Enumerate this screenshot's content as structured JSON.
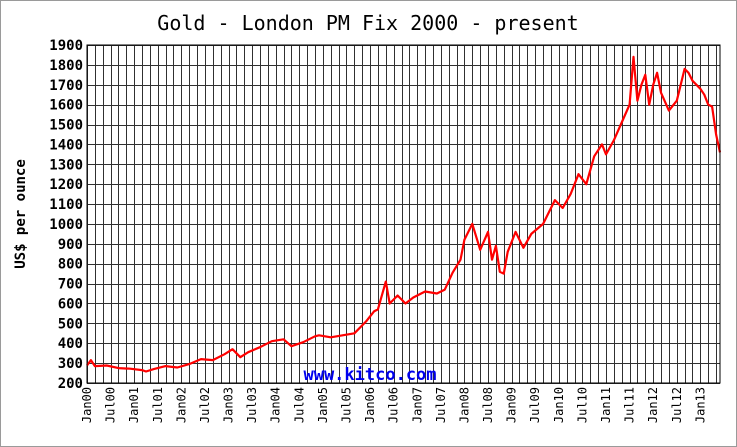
{
  "chart_data": {
    "type": "line",
    "title": "Gold - London PM Fix 2000 - present",
    "ylabel": "US$ per ounce",
    "xlabel": "",
    "watermark": "www.kitco.com",
    "x_range": [
      "2000-01",
      "2013-06"
    ],
    "ylim": [
      200,
      1900
    ],
    "y_ticks": [
      200,
      300,
      400,
      500,
      600,
      700,
      800,
      900,
      1000,
      1100,
      1200,
      1300,
      1400,
      1500,
      1600,
      1700,
      1800,
      1900
    ],
    "x_tick_labels": [
      "Jan00",
      "Jul00",
      "Jan01",
      "Jul01",
      "Jan02",
      "Jul02",
      "Jan03",
      "Jul03",
      "Jan04",
      "Jul04",
      "Jan05",
      "Jul05",
      "Jan06",
      "Jul06",
      "Jan07",
      "Jul07",
      "Jan08",
      "Jul08",
      "Jan09",
      "Jul09",
      "Jan10",
      "Jul10",
      "Jan11",
      "Jul11",
      "Jan12",
      "Jul12",
      "Jan13"
    ],
    "grid": true,
    "line_color": "#ff0000",
    "series": [
      {
        "x": [
          "2000-01",
          "2000-02",
          "2000-03",
          "2000-06",
          "2000-09",
          "2000-12",
          "2001-03",
          "2001-04",
          "2001-06",
          "2001-09",
          "2001-12",
          "2002-03",
          "2002-06",
          "2002-09",
          "2002-12",
          "2003-02",
          "2003-04",
          "2003-06",
          "2003-09",
          "2003-12",
          "2004-03",
          "2004-05",
          "2004-08",
          "2004-11",
          "2004-12",
          "2005-03",
          "2005-06",
          "2005-09",
          "2005-12",
          "2006-02",
          "2006-03",
          "2006-05",
          "2006-06",
          "2006-08",
          "2006-10",
          "2006-12",
          "2007-03",
          "2007-06",
          "2007-08",
          "2007-10",
          "2007-12",
          "2008-01",
          "2008-03",
          "2008-05",
          "2008-07",
          "2008-08",
          "2008-09",
          "2008-10",
          "2008-11",
          "2008-12",
          "2009-02",
          "2009-04",
          "2009-06",
          "2009-09",
          "2009-12",
          "2010-02",
          "2010-04",
          "2010-06",
          "2010-08",
          "2010-10",
          "2010-12",
          "2011-01",
          "2011-03",
          "2011-05",
          "2011-07",
          "2011-08",
          "2011-09",
          "2011-10",
          "2011-11",
          "2011-12",
          "2012-01",
          "2012-02",
          "2012-03",
          "2012-05",
          "2012-07",
          "2012-09",
          "2012-10",
          "2012-11",
          "2013-01",
          "2013-02",
          "2013-03",
          "2013-04",
          "2013-05",
          "2013-06"
        ],
        "values": [
          288,
          315,
          285,
          288,
          275,
          272,
          265,
          258,
          270,
          285,
          278,
          295,
          320,
          315,
          345,
          370,
          330,
          355,
          380,
          410,
          420,
          385,
          405,
          435,
          440,
          430,
          440,
          450,
          510,
          560,
          570,
          710,
          600,
          640,
          600,
          630,
          660,
          650,
          670,
          755,
          820,
          920,
          1000,
          870,
          960,
          820,
          890,
          760,
          750,
          860,
          960,
          880,
          950,
          1000,
          1120,
          1080,
          1150,
          1250,
          1200,
          1340,
          1400,
          1350,
          1420,
          1510,
          1600,
          1840,
          1620,
          1700,
          1750,
          1600,
          1700,
          1760,
          1660,
          1570,
          1620,
          1780,
          1760,
          1720,
          1680,
          1650,
          1600,
          1590,
          1450,
          1360
        ]
      }
    ]
  }
}
